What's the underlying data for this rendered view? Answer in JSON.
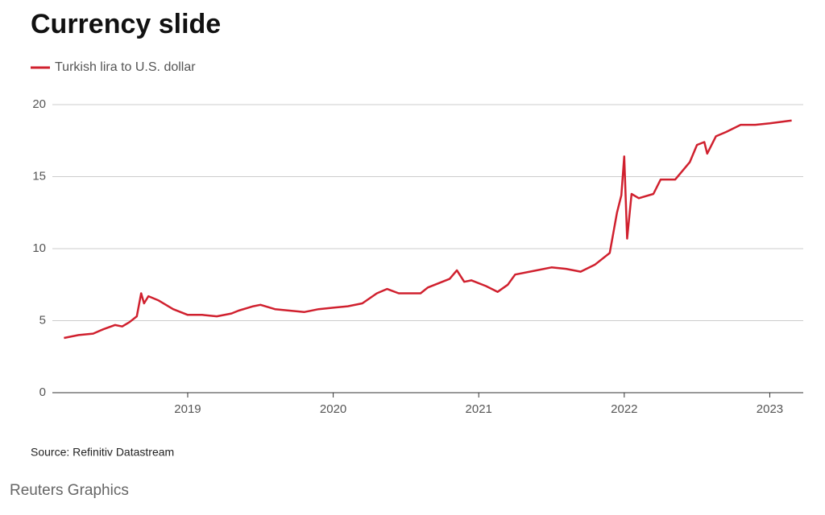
{
  "chart_data": {
    "type": "line",
    "title": "Currency slide",
    "source": "Source: Refinitiv Datastream",
    "footer": "Reuters Graphics",
    "x": [
      2018.15,
      2018.25,
      2018.35,
      2018.42,
      2018.5,
      2018.55,
      2018.6,
      2018.65,
      2018.68,
      2018.7,
      2018.73,
      2018.8,
      2018.9,
      2019.0,
      2019.1,
      2019.2,
      2019.3,
      2019.35,
      2019.45,
      2019.5,
      2019.6,
      2019.8,
      2019.9,
      2020.0,
      2020.1,
      2020.2,
      2020.3,
      2020.37,
      2020.45,
      2020.6,
      2020.65,
      2020.8,
      2020.85,
      2020.9,
      2020.95,
      2021.05,
      2021.13,
      2021.2,
      2021.25,
      2021.4,
      2021.5,
      2021.6,
      2021.7,
      2021.8,
      2021.9,
      2021.95,
      2021.98,
      2022.0,
      2022.02,
      2022.05,
      2022.1,
      2022.2,
      2022.25,
      2022.35,
      2022.45,
      2022.5,
      2022.55,
      2022.57,
      2022.63,
      2022.7,
      2022.8,
      2022.9,
      2023.0,
      2023.15
    ],
    "series": [
      {
        "name": "Turkish lira to U.S. dollar",
        "color": "#d0202e",
        "values": [
          3.8,
          4.0,
          4.1,
          4.4,
          4.7,
          4.6,
          4.9,
          5.3,
          6.9,
          6.2,
          6.7,
          6.4,
          5.8,
          5.4,
          5.4,
          5.3,
          5.5,
          5.7,
          6.0,
          6.1,
          5.8,
          5.6,
          5.8,
          5.9,
          6.0,
          6.2,
          6.9,
          7.2,
          6.9,
          6.9,
          7.3,
          7.9,
          8.5,
          7.7,
          7.8,
          7.4,
          7.0,
          7.5,
          8.2,
          8.5,
          8.7,
          8.6,
          8.4,
          8.9,
          9.7,
          12.5,
          13.7,
          16.4,
          10.7,
          13.8,
          13.5,
          13.8,
          14.8,
          14.8,
          16.0,
          17.2,
          17.4,
          16.6,
          17.8,
          18.1,
          18.6,
          18.6,
          18.7,
          18.9
        ]
      }
    ],
    "xlim": [
      2018.07,
      2023.23
    ],
    "xticks": [
      2019,
      2020,
      2021,
      2022,
      2023
    ],
    "ylim": [
      0,
      20
    ],
    "yticks": [
      0,
      5,
      10,
      15,
      20
    ],
    "grid": true
  }
}
